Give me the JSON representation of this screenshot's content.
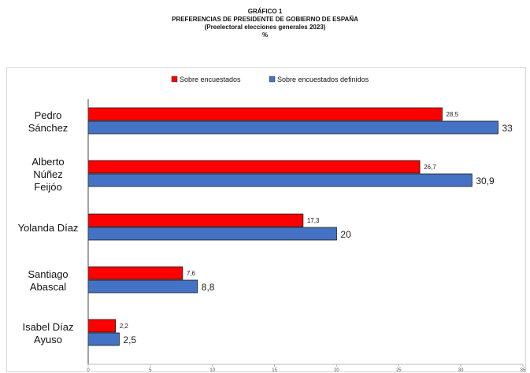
{
  "titles": {
    "line1": "GRÁFICO 1",
    "line2": "PREFERENCIAS DE PRESIDENTE DE GOBIERNO DE ESPAÑA",
    "line3": "(Preelectoral elecciones generales 2023)",
    "line4": "%"
  },
  "chart_data": {
    "type": "bar",
    "orientation": "horizontal",
    "categories": [
      [
        "Pedro",
        "Sánchez"
      ],
      [
        "Alberto",
        "Núñez",
        "Feijóo"
      ],
      [
        "Yolanda Díaz"
      ],
      [
        "Santiago",
        "Abascal"
      ],
      [
        "Isabel Díaz",
        "Ayuso"
      ]
    ],
    "series": [
      {
        "name": "Sobre encuestados",
        "color": "#ff0000",
        "values": [
          28.5,
          26.7,
          17.3,
          7.6,
          2.2
        ],
        "labels": [
          "28,5",
          "26,7",
          "17,3",
          "7,6",
          "2,2"
        ]
      },
      {
        "name": "Sobre encuestados definidos",
        "color": "#4472c4",
        "values": [
          33,
          30.9,
          20,
          8.8,
          2.5
        ],
        "labels": [
          "33",
          "30,9",
          "20",
          "8,8",
          "2,5"
        ]
      }
    ],
    "xlim": [
      0,
      35
    ],
    "xticks": [
      0,
      5,
      10,
      15,
      20,
      25,
      30,
      35
    ],
    "legend_position": "top",
    "grid": false
  }
}
